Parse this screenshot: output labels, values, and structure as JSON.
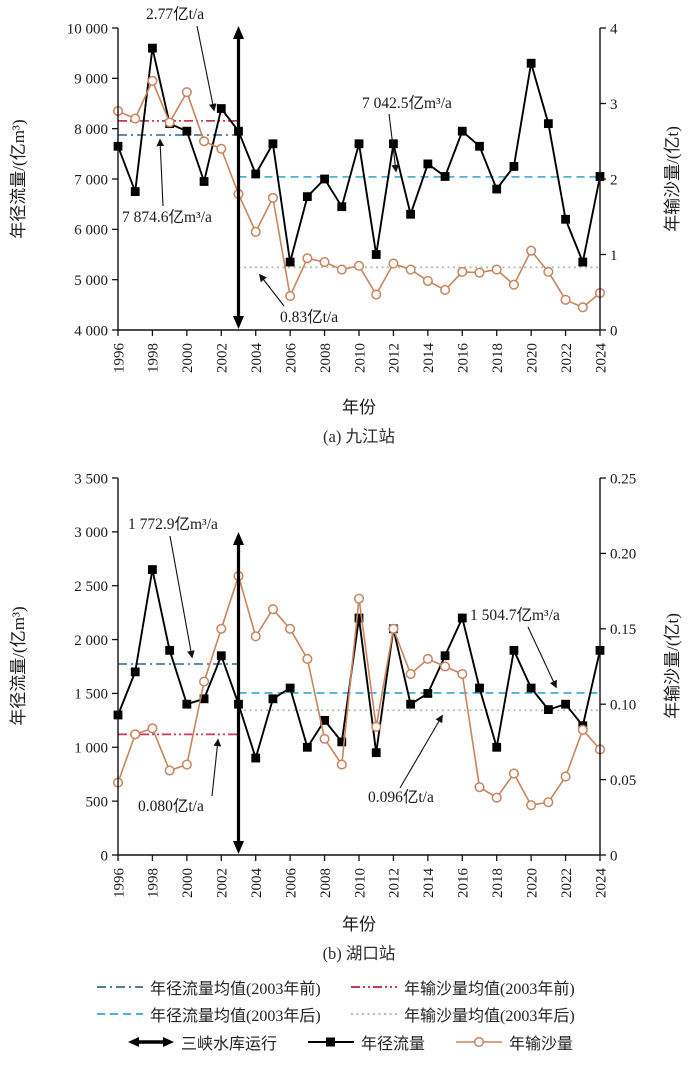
{
  "figure": {
    "xlabel": "年份",
    "caption_a": "(a) 九江站",
    "caption_b": "(b) 湖口站"
  },
  "colors": {
    "runoff": "#000000",
    "sediment": "#c9845f",
    "mean_runoff_pre": "#527c96",
    "mean_runoff_post": "#4ab4d6",
    "mean_sediment_pre": "#cb3a4f",
    "mean_sediment_post": "#a3c9a0",
    "axis": "#111111"
  },
  "chart_data": [
    {
      "type": "line",
      "station": "九江站",
      "caption": "(a) 九江站",
      "xlabel": "年份",
      "ylabel_left": "年径流量/(亿m³)",
      "ylabel_right": "年输沙量/(亿t)",
      "x": [
        1996,
        1997,
        1998,
        1999,
        2000,
        2001,
        2002,
        2003,
        2004,
        2005,
        2006,
        2007,
        2008,
        2009,
        2010,
        2011,
        2012,
        2013,
        2014,
        2015,
        2016,
        2017,
        2018,
        2019,
        2020,
        2021,
        2022,
        2023,
        2024
      ],
      "x_ticks": [
        1996,
        1998,
        2000,
        2002,
        2004,
        2006,
        2008,
        2010,
        2012,
        2014,
        2016,
        2018,
        2020,
        2022,
        2024
      ],
      "x_tick_labels": [
        "1996",
        "1998",
        "2000",
        "2002",
        "2004",
        "2006",
        "2008",
        "2010",
        "2012",
        "2014",
        "2016",
        "2018",
        "2020",
        "2022",
        "2024"
      ],
      "left_axis": {
        "min": 4000,
        "max": 10000,
        "ticks": [
          4000,
          5000,
          6000,
          7000,
          8000,
          9000,
          10000
        ],
        "tick_labels": [
          "4 000",
          "5 000",
          "6 000",
          "7 000",
          "8 000",
          "9 000",
          "10 000"
        ]
      },
      "right_axis": {
        "min": 0,
        "max": 4,
        "ticks": [
          0,
          1,
          2,
          3,
          4
        ],
        "tick_labels": [
          "0",
          "1",
          "2",
          "3",
          "4"
        ]
      },
      "series": [
        {
          "name": "年径流量",
          "axis": "left",
          "marker": "square",
          "color_key": "runoff",
          "values": [
            7650,
            6750,
            9600,
            8100,
            7950,
            6950,
            8400,
            7950,
            7100,
            7700,
            5350,
            6650,
            7000,
            6450,
            7700,
            5500,
            7700,
            6300,
            7300,
            7050,
            7950,
            7650,
            6800,
            7250,
            9300,
            8100,
            6200,
            5350,
            7050
          ]
        },
        {
          "name": "年输沙量",
          "axis": "right",
          "marker": "circle",
          "color_key": "sediment",
          "values": [
            2.9,
            2.8,
            3.3,
            2.75,
            3.15,
            2.5,
            2.4,
            1.8,
            1.3,
            1.75,
            0.45,
            0.95,
            0.9,
            0.8,
            0.85,
            0.47,
            0.88,
            0.8,
            0.65,
            0.53,
            0.77,
            0.76,
            0.8,
            0.6,
            1.05,
            0.77,
            0.4,
            0.3,
            0.49
          ]
        }
      ],
      "mean_lines": [
        {
          "name": "年径流量均值(2003年前)",
          "axis": "left",
          "value": 7874.6,
          "x_range": [
            1996,
            2003
          ],
          "style": "dashdot",
          "color_key": "mean_runoff_pre"
        },
        {
          "name": "年径流量均值(2003年后)",
          "axis": "left",
          "value": 7042.5,
          "x_range": [
            2003,
            2024
          ],
          "style": "dashed",
          "color_key": "mean_runoff_post"
        },
        {
          "name": "年输沙量均值(2003年前)",
          "axis": "right",
          "value": 2.77,
          "x_range": [
            1996,
            2003
          ],
          "style": "dashdotdot",
          "color_key": "mean_sediment_pre"
        },
        {
          "name": "年输沙量均值(2003年后)",
          "axis": "right",
          "value": 0.83,
          "x_range": [
            2003,
            2024
          ],
          "style": "dotted",
          "color_key": "mean_sediment_post"
        }
      ],
      "event_marker": {
        "label": "三峡水库运行",
        "year": 2003
      },
      "annotations": [
        {
          "text": "2.77亿t/a",
          "label": [
            146,
            19
          ],
          "from": [
            197,
            26
          ],
          "to": [
            214,
            110
          ]
        },
        {
          "text": "7 874.6亿m³/a",
          "label": [
            122,
            222
          ],
          "from": [
            163,
            206
          ],
          "to": [
            160,
            140
          ]
        },
        {
          "text": "7 042.5亿m³/a",
          "label": [
            362,
            108
          ],
          "from": [
            389,
            114
          ],
          "to": [
            396,
            171
          ]
        },
        {
          "text": "0.83亿t/a",
          "label": [
            280,
            322
          ],
          "from": [
            284,
            306
          ],
          "to": [
            260,
            275
          ]
        }
      ]
    },
    {
      "type": "line",
      "station": "湖口站",
      "caption": "(b) 湖口站",
      "xlabel": "年份",
      "ylabel_left": "年径流量/(亿m³)",
      "ylabel_right": "年输沙量/(亿t)",
      "x": [
        1996,
        1997,
        1998,
        1999,
        2000,
        2001,
        2002,
        2003,
        2004,
        2005,
        2006,
        2007,
        2008,
        2009,
        2010,
        2011,
        2012,
        2013,
        2014,
        2015,
        2016,
        2017,
        2018,
        2019,
        2020,
        2021,
        2022,
        2023,
        2024
      ],
      "x_ticks": [
        1996,
        1998,
        2000,
        2002,
        2004,
        2006,
        2008,
        2010,
        2012,
        2014,
        2016,
        2018,
        2020,
        2022,
        2024
      ],
      "x_tick_labels": [
        "1996",
        "1998",
        "2000",
        "2002",
        "2004",
        "2006",
        "2008",
        "2010",
        "2012",
        "2014",
        "2016",
        "2018",
        "2020",
        "2022",
        "2024"
      ],
      "left_axis": {
        "min": 0,
        "max": 3500,
        "ticks": [
          0,
          500,
          1000,
          1500,
          2000,
          2500,
          3000,
          3500
        ],
        "tick_labels": [
          "0",
          "500",
          "1 000",
          "1 500",
          "2 000",
          "2 500",
          "3 000",
          "3 500"
        ]
      },
      "right_axis": {
        "min": 0,
        "max": 0.25,
        "ticks": [
          0,
          0.05,
          0.1,
          0.15,
          0.2,
          0.25
        ],
        "tick_labels": [
          "0",
          "0.05",
          "0.10",
          "0.15",
          "0.20",
          "0.25"
        ]
      },
      "series": [
        {
          "name": "年径流量",
          "axis": "left",
          "marker": "square",
          "color_key": "runoff",
          "values": [
            1300,
            1700,
            2650,
            1900,
            1400,
            1450,
            1850,
            1400,
            900,
            1450,
            1550,
            1000,
            1250,
            1050,
            2200,
            950,
            2100,
            1400,
            1500,
            1850,
            2200,
            1550,
            1000,
            1900,
            1550,
            1350,
            1400,
            1200,
            1900
          ]
        },
        {
          "name": "年输沙量",
          "axis": "right",
          "marker": "circle",
          "color_key": "sediment",
          "values": [
            0.048,
            0.08,
            0.084,
            0.056,
            0.06,
            0.115,
            0.15,
            0.185,
            0.145,
            0.163,
            0.15,
            0.13,
            0.077,
            0.06,
            0.17,
            0.085,
            0.15,
            0.12,
            0.13,
            0.125,
            0.12,
            0.045,
            0.038,
            0.054,
            0.033,
            0.035,
            0.052,
            0.083,
            0.07
          ]
        }
      ],
      "mean_lines": [
        {
          "name": "年径流量均值(2003年前)",
          "axis": "left",
          "value": 1772.9,
          "x_range": [
            1996,
            2003
          ],
          "style": "dashdot",
          "color_key": "mean_runoff_pre"
        },
        {
          "name": "年径流量均值(2003年后)",
          "axis": "left",
          "value": 1504.7,
          "x_range": [
            2003,
            2024
          ],
          "style": "dashed",
          "color_key": "mean_runoff_post"
        },
        {
          "name": "年输沙量均值(2003年前)",
          "axis": "right",
          "value": 0.08,
          "x_range": [
            1996,
            2003
          ],
          "style": "dashdotdot",
          "color_key": "mean_sediment_pre"
        },
        {
          "name": "年输沙量均值(2003年后)",
          "axis": "right",
          "value": 0.096,
          "x_range": [
            2003,
            2024
          ],
          "style": "dotted",
          "color_key": "mean_sediment_post"
        }
      ],
      "event_marker": {
        "label": "三峡水库运行",
        "year": 2003
      },
      "annotations": [
        {
          "text": "1 772.9亿m³/a",
          "label": [
            128,
            79
          ],
          "from": [
            170,
            86
          ],
          "to": [
            192,
            207
          ]
        },
        {
          "text": "1 504.7亿m³/a",
          "label": [
            470,
            170
          ],
          "from": [
            528,
            177
          ],
          "to": [
            556,
            237
          ]
        },
        {
          "text": "0.080亿t/a",
          "label": [
            138,
            361
          ],
          "from": [
            212,
            346
          ],
          "to": [
            218,
            290
          ]
        },
        {
          "text": "0.096亿t/a",
          "label": [
            368,
            352
          ],
          "from": [
            400,
            338
          ],
          "to": [
            442,
            266
          ]
        }
      ]
    }
  ],
  "legend": {
    "rows": [
      [
        {
          "swatch": "dashdot",
          "color_key": "mean_runoff_pre",
          "label": "年径流量均值(2003年前)"
        },
        {
          "swatch": "dashdotdot",
          "color_key": "mean_sediment_pre",
          "label": "年输沙量均值(2003年前)"
        }
      ],
      [
        {
          "swatch": "dashed",
          "color_key": "mean_runoff_post",
          "label": "年径流量均值(2003年后)"
        },
        {
          "swatch": "dotted",
          "color_key": "mean_sediment_post",
          "label": "年输沙量均值(2003年后)"
        }
      ],
      [
        {
          "swatch": "double-arrow",
          "color_key": "runoff",
          "label": "三峡水库运行"
        },
        {
          "swatch": "line-square",
          "color_key": "runoff",
          "label": "年径流量"
        },
        {
          "swatch": "line-circle",
          "color_key": "sediment",
          "label": "年输沙量"
        }
      ]
    ]
  }
}
